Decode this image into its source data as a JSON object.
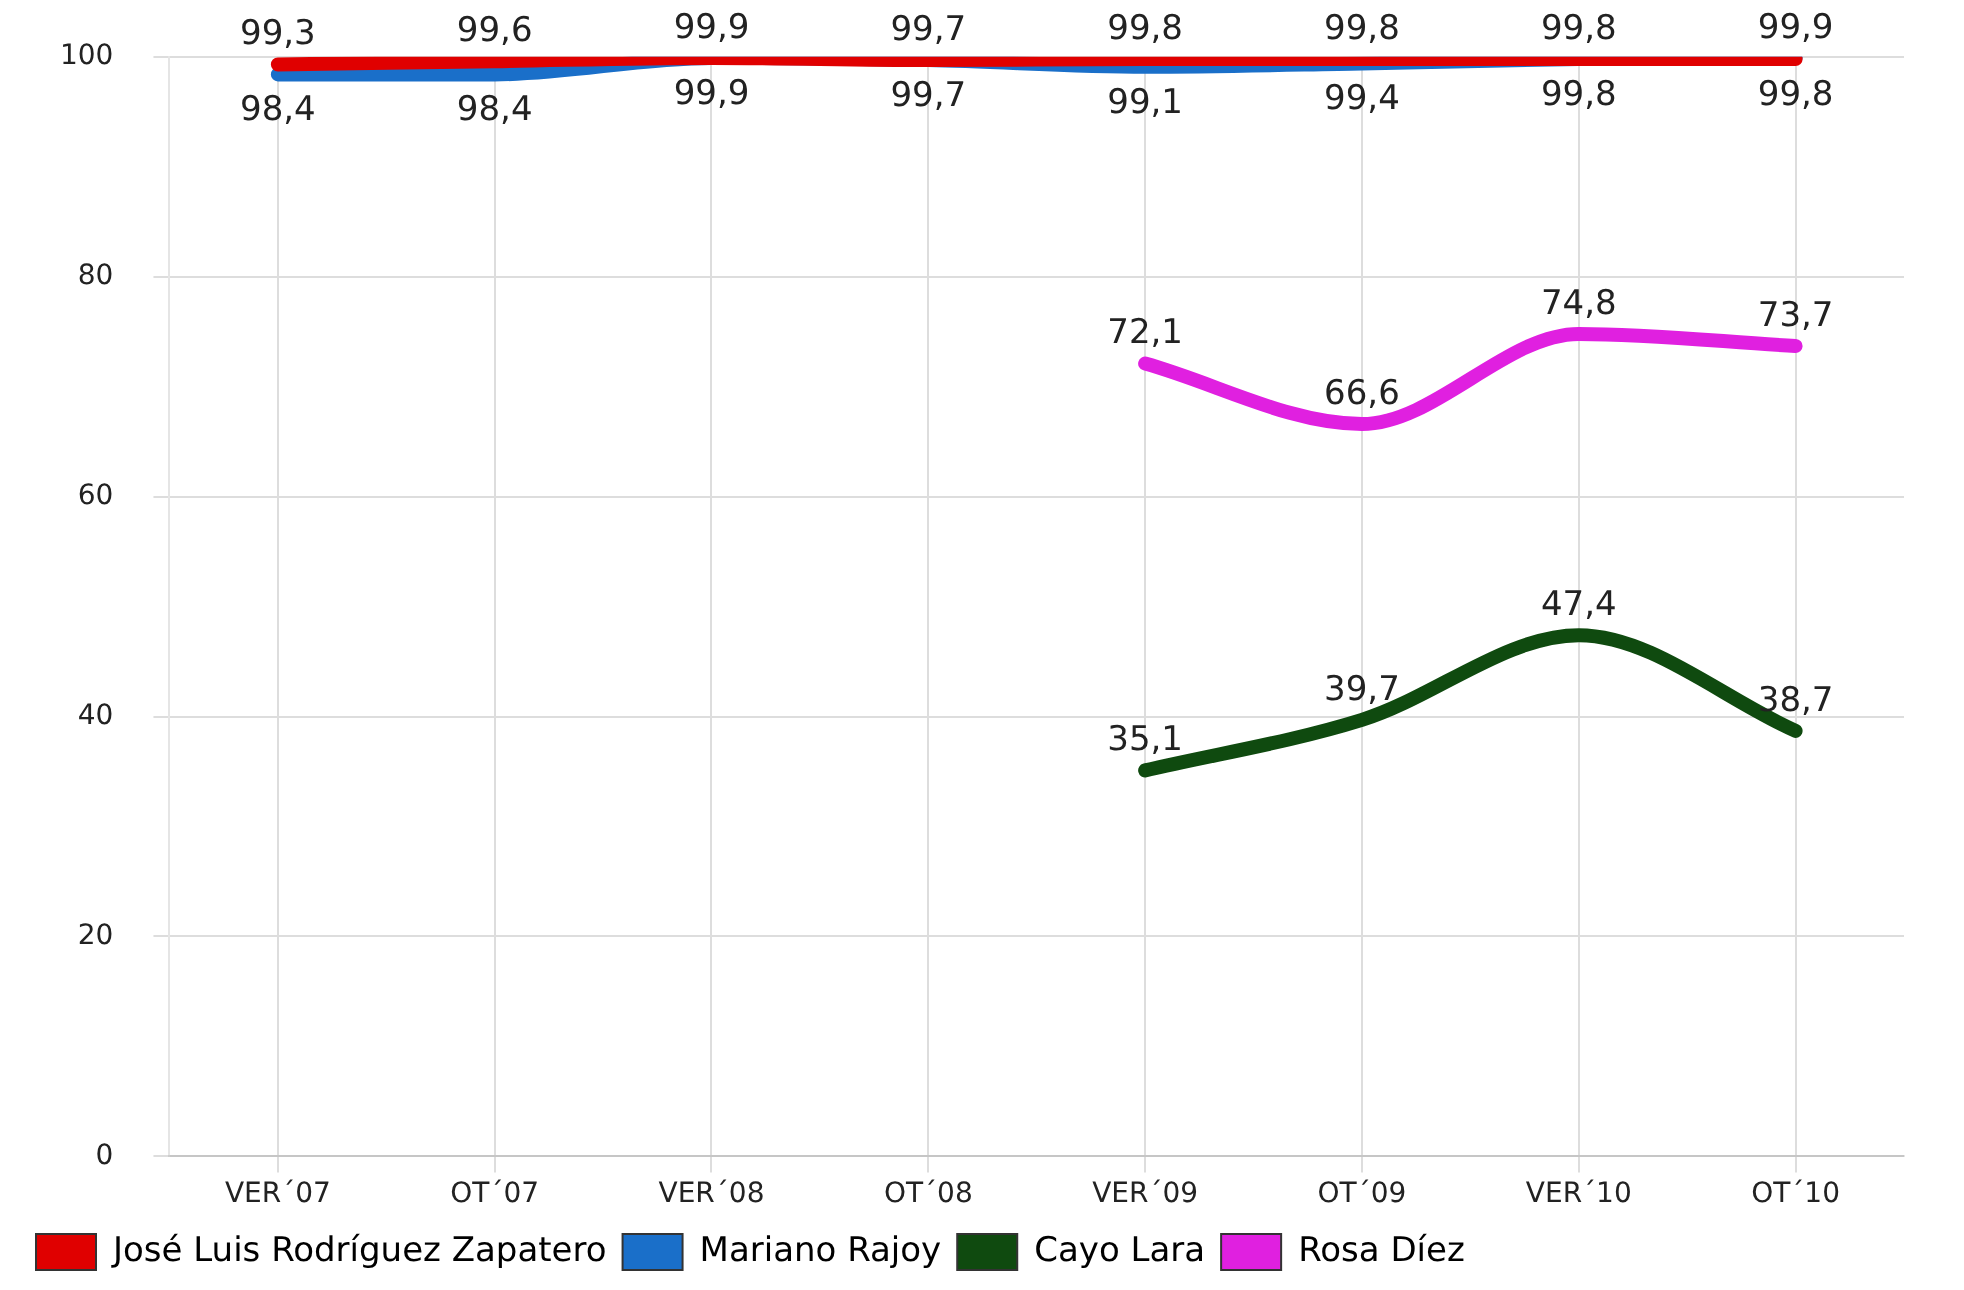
{
  "chart_data": {
    "type": "line",
    "categories": [
      "VER´07",
      "OT´07",
      "VER´08",
      "OT´08",
      "VER´09",
      "OT´09",
      "VER´10",
      "OT´10"
    ],
    "series": [
      {
        "name": "José Luis Rodríguez Zapatero",
        "color": "#e00000",
        "values": [
          99.3,
          99.6,
          99.9,
          99.7,
          99.8,
          99.8,
          99.8,
          99.8
        ],
        "value_labels": [
          "99,3",
          "99,6",
          "99,9",
          "99,7",
          "99,8",
          "99,8",
          "99,8",
          "99,8"
        ]
      },
      {
        "name": "Mariano Rajoy",
        "color": "#1a6fc9",
        "values": [
          98.4,
          98.4,
          99.9,
          99.7,
          99.1,
          99.4,
          99.8,
          99.9
        ],
        "value_labels": [
          "98,4",
          "98,4",
          "99,9",
          "99,7",
          "99,1",
          "99,4",
          "99,8",
          "99,9"
        ]
      },
      {
        "name": "Cayo Lara",
        "color": "#0f4a0f",
        "values": [
          null,
          null,
          null,
          null,
          35.1,
          39.7,
          47.4,
          38.7
        ],
        "value_labels": [
          null,
          null,
          null,
          null,
          "35,1",
          "39,7",
          "47,4",
          "38,7"
        ]
      },
      {
        "name": "Rosa Díez",
        "color": "#e020e0",
        "values": [
          null,
          null,
          null,
          null,
          72.1,
          66.6,
          74.8,
          73.7
        ],
        "value_labels": [
          null,
          null,
          null,
          null,
          "72,1",
          "66,6",
          "74,8",
          "73,7"
        ]
      }
    ],
    "ylim": [
      0,
      100
    ],
    "yticks": [
      0,
      20,
      40,
      60,
      80,
      100
    ],
    "grid": true,
    "legend": "bottom",
    "marker": "none",
    "line_style": "solid"
  }
}
